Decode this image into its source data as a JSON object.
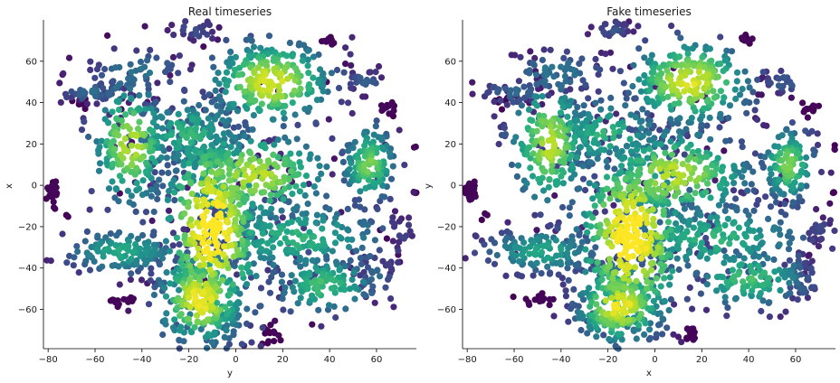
{
  "chart_data": [
    {
      "type": "scatter",
      "title": "Real timeseries",
      "xlabel": "y",
      "ylabel": "x",
      "xlim": [
        -82,
        77
      ],
      "ylim": [
        -79,
        80
      ],
      "xticks": [
        -80,
        -60,
        -40,
        -20,
        0,
        20,
        40,
        60
      ],
      "yticks": [
        -60,
        -40,
        -20,
        0,
        20,
        40,
        60
      ],
      "grid": false,
      "colormap": "viridis",
      "clusters": [
        {
          "x": -10,
          "y": -20,
          "sx": 12,
          "sy": 28,
          "n": 420,
          "density": 1.0
        },
        {
          "x": -15,
          "y": -55,
          "sx": 10,
          "sy": 12,
          "n": 220,
          "density": 0.95
        },
        {
          "x": 8,
          "y": 5,
          "sx": 18,
          "sy": 12,
          "n": 260,
          "density": 0.85
        },
        {
          "x": -45,
          "y": 20,
          "sx": 9,
          "sy": 16,
          "n": 200,
          "density": 0.85
        },
        {
          "x": 15,
          "y": 50,
          "sx": 14,
          "sy": 11,
          "n": 260,
          "density": 0.9
        },
        {
          "x": 25,
          "y": -25,
          "sx": 22,
          "sy": 10,
          "n": 220,
          "density": 0.6
        },
        {
          "x": 57,
          "y": 10,
          "sx": 6,
          "sy": 10,
          "n": 130,
          "density": 0.75
        },
        {
          "x": 38,
          "y": -48,
          "sx": 12,
          "sy": 8,
          "n": 120,
          "density": 0.65
        },
        {
          "x": -48,
          "y": -32,
          "sx": 14,
          "sy": 6,
          "n": 140,
          "density": 0.55
        },
        {
          "x": -20,
          "y": 25,
          "sx": 14,
          "sy": 10,
          "n": 140,
          "density": 0.6
        },
        {
          "x": -60,
          "y": 45,
          "sx": 8,
          "sy": 3,
          "n": 40,
          "density": 0.3
        },
        {
          "x": -42,
          "y": 55,
          "sx": 12,
          "sy": 6,
          "n": 60,
          "density": 0.35
        },
        {
          "x": -18,
          "y": 75,
          "sx": 6,
          "sy": 3,
          "n": 30,
          "density": 0.2
        },
        {
          "x": 55,
          "y": 50,
          "sx": 5,
          "sy": 3,
          "n": 30,
          "density": 0.25
        },
        {
          "x": 70,
          "y": -22,
          "sx": 3,
          "sy": 4,
          "n": 20,
          "density": 0.2
        },
        {
          "x": 60,
          "y": -45,
          "sx": 4,
          "sy": 6,
          "n": 30,
          "density": 0.3
        }
      ],
      "outliers": [
        {
          "x": -78,
          "y": -3,
          "sx": 1.5,
          "sy": 3,
          "n": 24
        },
        {
          "x": -72,
          "y": -15,
          "sx": 0.4,
          "sy": 0.4,
          "n": 2
        },
        {
          "x": -50,
          "y": -56,
          "sx": 3,
          "sy": 1.5,
          "n": 14
        },
        {
          "x": 15,
          "y": -72,
          "sx": 2,
          "sy": 2.5,
          "n": 16
        },
        {
          "x": 40,
          "y": 70,
          "sx": 1.5,
          "sy": 1.5,
          "n": 10
        },
        {
          "x": 66,
          "y": 37,
          "sx": 2,
          "sy": 2,
          "n": 12
        },
        {
          "x": 77,
          "y": 18,
          "sx": 0.5,
          "sy": 0.6,
          "n": 4
        },
        {
          "x": 76,
          "y": -3,
          "sx": 0.5,
          "sy": 0.6,
          "n": 4
        },
        {
          "x": -65,
          "y": 40,
          "sx": 2,
          "sy": 1.5,
          "n": 8
        }
      ]
    },
    {
      "type": "scatter",
      "title": "Fake timeseries",
      "xlabel": "x",
      "ylabel": "y",
      "xlim": [
        -82,
        77
      ],
      "ylim": [
        -79,
        80
      ],
      "xticks": [
        -80,
        -60,
        -40,
        -20,
        0,
        20,
        40,
        60
      ],
      "yticks": [
        -60,
        -40,
        -20,
        0,
        20,
        40,
        60
      ],
      "grid": false,
      "colormap": "viridis",
      "clusters": [
        {
          "x": -10,
          "y": -25,
          "sx": 13,
          "sy": 25,
          "n": 420,
          "density": 1.0
        },
        {
          "x": -15,
          "y": -58,
          "sx": 10,
          "sy": 10,
          "n": 220,
          "density": 0.95
        },
        {
          "x": 8,
          "y": 5,
          "sx": 18,
          "sy": 12,
          "n": 260,
          "density": 0.85
        },
        {
          "x": -45,
          "y": 20,
          "sx": 9,
          "sy": 16,
          "n": 200,
          "density": 0.85
        },
        {
          "x": 15,
          "y": 50,
          "sx": 14,
          "sy": 11,
          "n": 260,
          "density": 0.9
        },
        {
          "x": 25,
          "y": -25,
          "sx": 22,
          "sy": 10,
          "n": 220,
          "density": 0.6
        },
        {
          "x": 57,
          "y": 10,
          "sx": 6,
          "sy": 10,
          "n": 130,
          "density": 0.75
        },
        {
          "x": 40,
          "y": -45,
          "sx": 14,
          "sy": 8,
          "n": 130,
          "density": 0.65
        },
        {
          "x": -48,
          "y": -32,
          "sx": 14,
          "sy": 6,
          "n": 140,
          "density": 0.55
        },
        {
          "x": -20,
          "y": 25,
          "sx": 14,
          "sy": 10,
          "n": 140,
          "density": 0.6
        },
        {
          "x": -60,
          "y": 45,
          "sx": 8,
          "sy": 3,
          "n": 40,
          "density": 0.3
        },
        {
          "x": -42,
          "y": 55,
          "sx": 12,
          "sy": 6,
          "n": 60,
          "density": 0.35
        },
        {
          "x": -18,
          "y": 75,
          "sx": 6,
          "sy": 3,
          "n": 30,
          "density": 0.2
        },
        {
          "x": 55,
          "y": 50,
          "sx": 5,
          "sy": 3,
          "n": 30,
          "density": 0.25
        },
        {
          "x": 70,
          "y": -22,
          "sx": 3,
          "sy": 4,
          "n": 20,
          "density": 0.2
        },
        {
          "x": 60,
          "y": -45,
          "sx": 4,
          "sy": 6,
          "n": 30,
          "density": 0.3
        }
      ],
      "outliers": [
        {
          "x": -78,
          "y": -3,
          "sx": 1.5,
          "sy": 3,
          "n": 24
        },
        {
          "x": -72,
          "y": -15,
          "sx": 0.4,
          "sy": 0.4,
          "n": 2
        },
        {
          "x": -50,
          "y": -56,
          "sx": 3,
          "sy": 1.5,
          "n": 14
        },
        {
          "x": 15,
          "y": -72,
          "sx": 2,
          "sy": 2.5,
          "n": 16
        },
        {
          "x": 40,
          "y": 70,
          "sx": 1.5,
          "sy": 1.5,
          "n": 10
        },
        {
          "x": 66,
          "y": 37,
          "sx": 2,
          "sy": 2,
          "n": 12
        },
        {
          "x": 77,
          "y": 18,
          "sx": 0.5,
          "sy": 0.6,
          "n": 4
        },
        {
          "x": 76,
          "y": -3,
          "sx": 0.5,
          "sy": 0.6,
          "n": 4
        },
        {
          "x": -65,
          "y": 40,
          "sx": 2,
          "sy": 1.5,
          "n": 8
        }
      ]
    }
  ]
}
